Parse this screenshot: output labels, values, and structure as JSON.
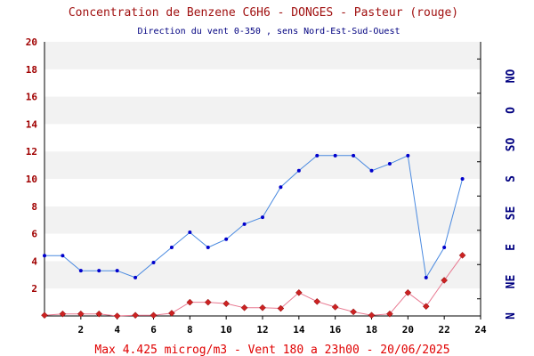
{
  "chart_data": {
    "type": "line",
    "title": "Concentration de Benzene C6H6  -   DONGES - Pasteur (rouge)",
    "subtitle": "Direction du vent 0-350 , sens Nord-Est-Sud-Ouest",
    "footer": "Max 4.425 microg/m3 - Vent 180  a 23h00 - 20/06/2025",
    "x": [
      0,
      1,
      2,
      3,
      4,
      5,
      6,
      7,
      8,
      9,
      10,
      11,
      12,
      13,
      14,
      15,
      16,
      17,
      18,
      19,
      20,
      21,
      22,
      23
    ],
    "x_ticks": [
      "2",
      "4",
      "6",
      "8",
      "10",
      "12",
      "14",
      "16",
      "18",
      "20",
      "22",
      "24"
    ],
    "xlim": [
      0,
      24
    ],
    "ylim": [
      0,
      20
    ],
    "y_ticks": [
      "2",
      "4",
      "6",
      "8",
      "10",
      "12",
      "14",
      "16",
      "18",
      "20"
    ],
    "grid": "alternating horizontal bands",
    "right_axis": {
      "labels": [
        "N",
        "NE",
        "E",
        "SE",
        "S",
        "SO",
        "O",
        "NO"
      ],
      "range_degrees": [
        0,
        350
      ]
    },
    "series": [
      {
        "name": "wind direction",
        "color": "#4a8ae0",
        "marker_color": "#0000cc",
        "marker": "dot",
        "values": [
          4.4,
          4.4,
          3.3,
          3.3,
          3.3,
          2.8,
          3.9,
          5.0,
          6.1,
          5.0,
          5.6,
          6.7,
          7.2,
          9.4,
          10.6,
          11.7,
          11.7,
          11.7,
          10.6,
          11.1,
          11.7,
          2.8,
          5.0,
          10.0
        ]
      },
      {
        "name": "Benzene C6H6",
        "color": "#e87890",
        "marker_color": "#cc2222",
        "marker": "diamond",
        "values": [
          0.05,
          0.15,
          0.15,
          0.15,
          0.0,
          0.05,
          0.05,
          0.2,
          1.0,
          1.0,
          0.9,
          0.6,
          0.6,
          0.55,
          1.7,
          1.05,
          0.65,
          0.3,
          0.05,
          0.15,
          1.7,
          0.7,
          2.6,
          4.425
        ]
      }
    ]
  }
}
